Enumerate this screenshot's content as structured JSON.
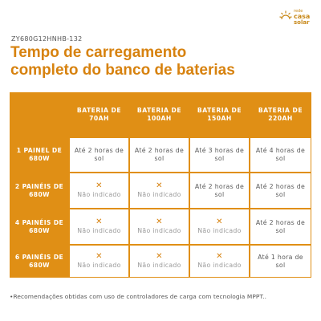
{
  "brand": {
    "line1": "rede",
    "line2": "casa",
    "line3": "solar"
  },
  "product_code": "ZY680G12HNHB-132",
  "title": {
    "line1": "Tempo de carregamento",
    "line2": "completo do banco de baterias"
  },
  "table": {
    "columns": [
      "BATERIA DE 70AH",
      "BATERIA DE 100AH",
      "BATERIA DE 150AH",
      "BATERIA DE 220AH"
    ],
    "rows": [
      {
        "label": "1 PAINEL DE 680W",
        "cells": [
          {
            "text": "Até 2 horas de sol",
            "available": true
          },
          {
            "text": "Até 2 horas de sol",
            "available": true
          },
          {
            "text": "Até 3 horas de sol",
            "available": true
          },
          {
            "text": "Até 4 horas de sol",
            "available": true
          }
        ]
      },
      {
        "label": "2 PAINÉIS DE 680W",
        "cells": [
          {
            "text": "Não indicado",
            "available": false
          },
          {
            "text": "Não indicado",
            "available": false
          },
          {
            "text": "Até 2 horas de sol",
            "available": true
          },
          {
            "text": "Até 2 horas de sol",
            "available": true
          }
        ]
      },
      {
        "label": "4 PAINÉIS DE 680W",
        "cells": [
          {
            "text": "Não indicado",
            "available": false
          },
          {
            "text": "Não indicado",
            "available": false
          },
          {
            "text": "Não indicado",
            "available": false
          },
          {
            "text": "Até 2 horas de sol",
            "available": true
          }
        ]
      },
      {
        "label": "6 PAINÉIS DE 680W",
        "cells": [
          {
            "text": "Não indicado",
            "available": false
          },
          {
            "text": "Não indicado",
            "available": false
          },
          {
            "text": "Não indicado",
            "available": false
          },
          {
            "text": "Até 1 hora de sol",
            "available": true
          }
        ]
      }
    ],
    "unavailable_icon": "x-mark-icon"
  },
  "footnote": "•Recomendações obtidas com uso de controladores de carga com tecnologia MPPT..",
  "colors": {
    "accent": "#e08f15",
    "title": "#d7820f",
    "text": "#5a5a5a"
  }
}
